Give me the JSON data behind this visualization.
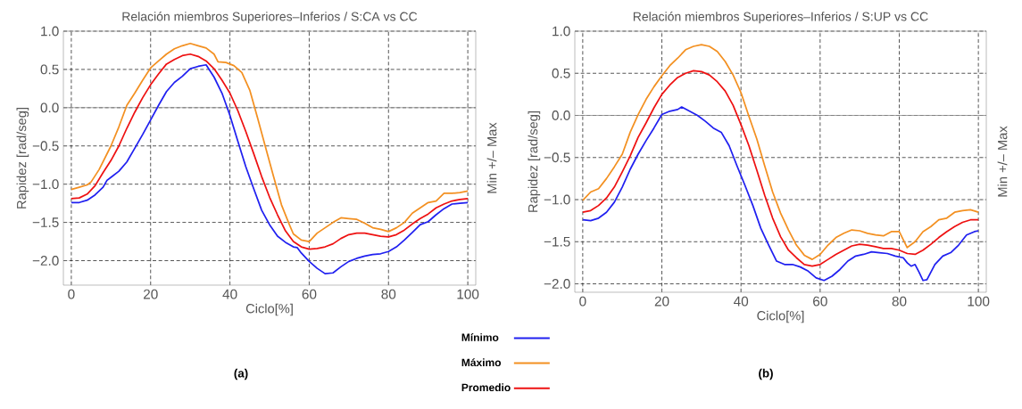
{
  "chart_data": [
    {
      "type": "line",
      "title": "Relación miembros Superiores–Inferios / S:CA vs CC",
      "xlabel": "Ciclo[%]",
      "ylabel": "Rapidez [rad/seg]",
      "y2label": "Min +/– Max",
      "xlim": [
        -2,
        102
      ],
      "ylim": [
        -2.32,
        1.0
      ],
      "xticks": [
        0,
        20,
        40,
        60,
        80,
        100
      ],
      "yticks": [
        {
          "value": 1.0,
          "label": "1.0"
        },
        {
          "value": 0.5,
          "label": "0.5"
        },
        {
          "value": 0,
          "label": "0.0"
        },
        {
          "value": -0.5,
          "label": "−0.5"
        },
        {
          "value": -1.0,
          "label": "−1.0"
        },
        {
          "value": -1.5,
          "label": "−1.5"
        },
        {
          "value": -2.0,
          "label": "−2.0"
        }
      ],
      "grid": true,
      "legend": "bottom right",
      "marker": "none",
      "line_style": "solid",
      "ref_lines": [
        {
          "axis": "y",
          "value": 0,
          "color": "#8c8c8c"
        }
      ],
      "annotations": [
        "(a)"
      ],
      "series": [
        {
          "name": "Mínimo",
          "color": "#2020f0",
          "x": [
            0,
            2,
            4,
            6,
            8,
            9,
            10,
            12,
            14,
            16,
            18,
            20,
            22,
            24,
            26,
            28,
            30,
            32,
            34,
            36,
            38,
            40,
            42,
            44,
            46,
            48,
            50,
            52,
            54,
            56,
            57,
            58,
            60,
            62,
            64,
            66,
            68,
            70,
            72,
            74,
            76,
            78,
            80,
            82,
            84,
            86,
            88,
            90,
            92,
            94,
            96,
            98,
            100
          ],
          "values": [
            -1.24,
            -1.24,
            -1.21,
            -1.14,
            -1.04,
            -0.95,
            -0.91,
            -0.83,
            -0.71,
            -0.53,
            -0.35,
            -0.16,
            0.03,
            0.21,
            0.33,
            0.41,
            0.51,
            0.54,
            0.56,
            0.4,
            0.19,
            -0.1,
            -0.44,
            -0.77,
            -1.06,
            -1.34,
            -1.53,
            -1.68,
            -1.76,
            -1.82,
            -1.83,
            -1.9,
            -2.01,
            -2.1,
            -2.17,
            -2.16,
            -2.08,
            -2.01,
            -1.97,
            -1.94,
            -1.92,
            -1.91,
            -1.88,
            -1.82,
            -1.73,
            -1.63,
            -1.53,
            -1.49,
            -1.4,
            -1.32,
            -1.26,
            -1.25,
            -1.24
          ]
        },
        {
          "name": "Máximo",
          "color": "#f39021",
          "x": [
            0,
            2,
            4,
            5,
            7,
            10,
            12,
            14,
            16,
            18,
            20,
            22,
            24,
            26,
            28,
            30,
            32,
            34,
            36,
            37,
            39,
            41,
            43,
            45,
            47,
            49,
            51,
            53,
            55,
            56,
            58,
            60,
            62,
            64,
            66,
            68,
            70,
            72,
            74,
            76,
            78,
            80,
            82,
            84,
            86,
            88,
            90,
            92,
            94,
            96,
            98,
            100
          ],
          "values": [
            -1.07,
            -1.04,
            -1.01,
            -0.97,
            -0.81,
            -0.5,
            -0.25,
            0.03,
            0.19,
            0.36,
            0.52,
            0.61,
            0.7,
            0.77,
            0.81,
            0.84,
            0.81,
            0.78,
            0.7,
            0.6,
            0.59,
            0.55,
            0.46,
            0.23,
            -0.14,
            -0.52,
            -0.9,
            -1.27,
            -1.53,
            -1.65,
            -1.73,
            -1.75,
            -1.64,
            -1.57,
            -1.5,
            -1.44,
            -1.45,
            -1.46,
            -1.51,
            -1.57,
            -1.59,
            -1.62,
            -1.57,
            -1.5,
            -1.38,
            -1.31,
            -1.24,
            -1.22,
            -1.12,
            -1.12,
            -1.11,
            -1.09
          ]
        },
        {
          "name": "Promedio",
          "color": "#ee1111",
          "x": [
            0,
            2,
            4,
            6,
            8,
            10,
            12,
            14,
            16,
            18,
            20,
            22,
            24,
            26,
            28,
            30,
            32,
            34,
            36,
            38,
            40,
            42,
            44,
            46,
            48,
            50,
            52,
            54,
            56,
            58,
            60,
            62,
            64,
            66,
            68,
            70,
            72,
            74,
            76,
            78,
            80,
            82,
            84,
            86,
            88,
            90,
            92,
            94,
            96,
            98,
            100
          ],
          "values": [
            -1.19,
            -1.18,
            -1.13,
            -1.02,
            -0.85,
            -0.69,
            -0.5,
            -0.27,
            -0.06,
            0.13,
            0.3,
            0.44,
            0.57,
            0.63,
            0.68,
            0.7,
            0.67,
            0.61,
            0.51,
            0.36,
            0.19,
            -0.04,
            -0.31,
            -0.6,
            -0.9,
            -1.17,
            -1.4,
            -1.61,
            -1.75,
            -1.82,
            -1.85,
            -1.84,
            -1.82,
            -1.78,
            -1.71,
            -1.66,
            -1.64,
            -1.64,
            -1.66,
            -1.68,
            -1.69,
            -1.66,
            -1.6,
            -1.52,
            -1.45,
            -1.39,
            -1.31,
            -1.26,
            -1.22,
            -1.2,
            -1.19
          ]
        }
      ]
    },
    {
      "type": "line",
      "title": "Relación miembros Superiores–Inferios / S:UP vs CC",
      "xlabel": "Ciclo[%]",
      "ylabel": "Rapidez [rad/seg]",
      "y2label": "Min +/– Max",
      "xlim": [
        -2,
        102
      ],
      "ylim": [
        -2.1,
        1.0
      ],
      "xticks": [
        0,
        20,
        40,
        60,
        80,
        100
      ],
      "yticks": [
        {
          "value": 1.0,
          "label": "1.0"
        },
        {
          "value": 0.5,
          "label": "0.5"
        },
        {
          "value": 0,
          "label": "0.0"
        },
        {
          "value": -0.5,
          "label": "−0.5"
        },
        {
          "value": -1.0,
          "label": "−1.0"
        },
        {
          "value": -1.5,
          "label": "−1.5"
        },
        {
          "value": -2.0,
          "label": "−2.0"
        }
      ],
      "grid": true,
      "marker": "none",
      "line_style": "solid",
      "ref_lines": [
        {
          "axis": "y",
          "value": 0,
          "color": "#8c8c8c"
        }
      ],
      "annotations": [
        "(b)"
      ],
      "series": [
        {
          "color": "#2020f0",
          "x": [
            0,
            2,
            4,
            6,
            8,
            10,
            12,
            14,
            16,
            18,
            20,
            22,
            24,
            25,
            27,
            29,
            31,
            33,
            35,
            37,
            39,
            41,
            43,
            45,
            47,
            49,
            51,
            53,
            55,
            57,
            59,
            61,
            63,
            65,
            67,
            69,
            71,
            73,
            75,
            77,
            79,
            81,
            82,
            83,
            84,
            85,
            86,
            87,
            89,
            91,
            93,
            95,
            97,
            99,
            100
          ],
          "values": [
            -1.24,
            -1.25,
            -1.22,
            -1.15,
            -1.03,
            -0.85,
            -0.64,
            -0.46,
            -0.3,
            -0.15,
            0.01,
            0.05,
            0.07,
            0.1,
            0.05,
            0.0,
            -0.07,
            -0.15,
            -0.2,
            -0.36,
            -0.6,
            -0.83,
            -1.07,
            -1.34,
            -1.54,
            -1.73,
            -1.77,
            -1.77,
            -1.8,
            -1.85,
            -1.93,
            -1.96,
            -1.91,
            -1.83,
            -1.73,
            -1.67,
            -1.65,
            -1.62,
            -1.63,
            -1.64,
            -1.67,
            -1.69,
            -1.75,
            -1.79,
            -1.77,
            -1.86,
            -1.96,
            -1.95,
            -1.77,
            -1.67,
            -1.63,
            -1.54,
            -1.42,
            -1.38,
            -1.37
          ]
        },
        {
          "color": "#f39021",
          "x": [
            0,
            2,
            4,
            6,
            8,
            10,
            12,
            14,
            16,
            18,
            20,
            22,
            24,
            26,
            28,
            30,
            32,
            34,
            36,
            38,
            40,
            42,
            44,
            46,
            48,
            50,
            52,
            54,
            56,
            58,
            60,
            62,
            64,
            66,
            68,
            70,
            72,
            74,
            76,
            78,
            80,
            82,
            84,
            86,
            88,
            90,
            92,
            94,
            96,
            98,
            100
          ],
          "values": [
            -1.01,
            -0.91,
            -0.87,
            -0.75,
            -0.61,
            -0.46,
            -0.2,
            0.01,
            0.19,
            0.34,
            0.47,
            0.59,
            0.68,
            0.78,
            0.82,
            0.84,
            0.82,
            0.76,
            0.64,
            0.48,
            0.27,
            -0.01,
            -0.28,
            -0.6,
            -0.91,
            -1.16,
            -1.36,
            -1.54,
            -1.66,
            -1.71,
            -1.65,
            -1.54,
            -1.45,
            -1.4,
            -1.36,
            -1.37,
            -1.4,
            -1.42,
            -1.43,
            -1.38,
            -1.38,
            -1.57,
            -1.5,
            -1.38,
            -1.32,
            -1.24,
            -1.22,
            -1.15,
            -1.13,
            -1.12,
            -1.15
          ]
        },
        {
          "color": "#ee1111",
          "x": [
            0,
            2,
            4,
            6,
            8,
            10,
            12,
            14,
            16,
            18,
            20,
            22,
            24,
            26,
            28,
            30,
            32,
            34,
            36,
            38,
            40,
            42,
            44,
            46,
            48,
            50,
            52,
            54,
            56,
            58,
            60,
            62,
            64,
            66,
            68,
            70,
            72,
            74,
            76,
            78,
            80,
            82,
            84,
            86,
            88,
            90,
            92,
            94,
            96,
            98,
            100
          ],
          "values": [
            -1.15,
            -1.13,
            -1.07,
            -0.98,
            -0.85,
            -0.67,
            -0.48,
            -0.26,
            -0.09,
            0.09,
            0.25,
            0.36,
            0.45,
            0.5,
            0.53,
            0.52,
            0.48,
            0.4,
            0.29,
            0.12,
            -0.11,
            -0.36,
            -0.65,
            -0.95,
            -1.22,
            -1.44,
            -1.6,
            -1.69,
            -1.77,
            -1.79,
            -1.77,
            -1.71,
            -1.65,
            -1.6,
            -1.55,
            -1.53,
            -1.54,
            -1.56,
            -1.58,
            -1.58,
            -1.6,
            -1.64,
            -1.65,
            -1.6,
            -1.53,
            -1.45,
            -1.38,
            -1.32,
            -1.27,
            -1.24,
            -1.24
          ]
        }
      ]
    }
  ]
}
